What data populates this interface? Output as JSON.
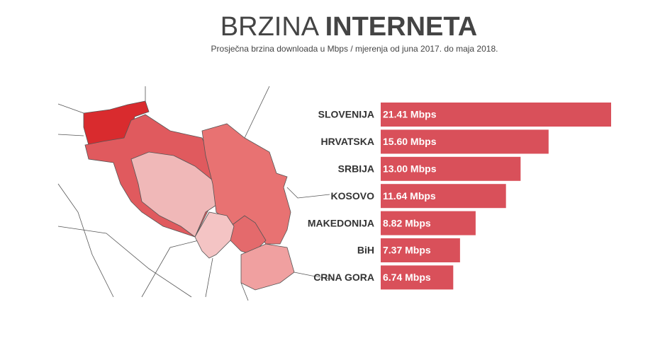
{
  "chart_data": {
    "type": "bar",
    "title": [
      "BRZINA",
      "INTERNETA"
    ],
    "subtitle": "Prosječna brzina downloada u Mbps / mjerenja od juna 2017. do maja 2018.",
    "categories": [
      "SLOVENIJA",
      "HRVATSKA",
      "SRBIJA",
      "KOSOVO",
      "MAKEDONIJA",
      "BiH",
      "CRNA GORA"
    ],
    "values": [
      21.41,
      15.6,
      13.0,
      11.64,
      8.82,
      7.37,
      6.74
    ],
    "value_labels": [
      "21.41 Mbps",
      "15.60 Mbps",
      "13.00 Mbps",
      "11.64 Mbps",
      "8.82 Mbps",
      "7.37 Mbps",
      "6.74 Mbps"
    ],
    "color": "#d9505a"
  }
}
